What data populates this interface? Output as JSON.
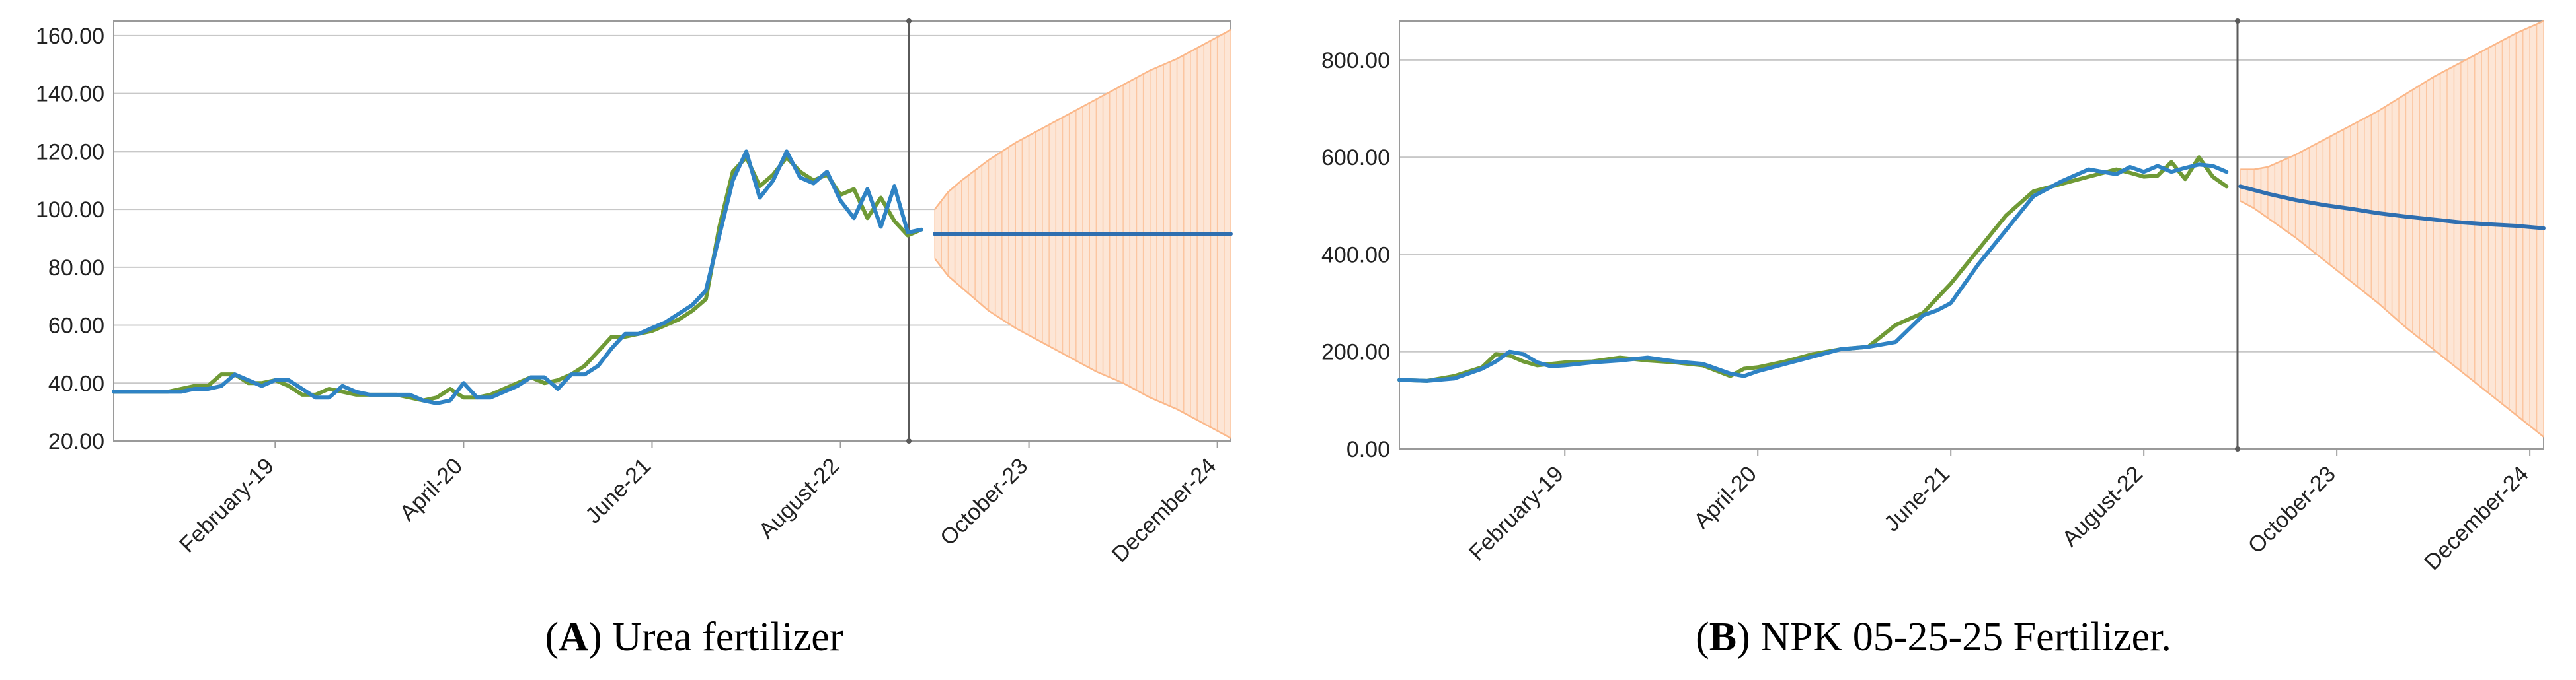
{
  "colors": {
    "actual": "#6f9a36",
    "fitted": "#2f83c4",
    "forecast": "#2f6fb0",
    "band": "#fbb88a",
    "band_fill": "#fde6d6",
    "grid": "#c8c8c8",
    "axis": "#9a9a9a",
    "divider": "#5a5a5a"
  },
  "captions": [
    {
      "letter": "A",
      "text": " Urea fertilizer"
    },
    {
      "letter": "B",
      "text": " NPK 05-25-25 Fertilizer."
    }
  ],
  "chart_data": [
    {
      "type": "line",
      "title": "",
      "ylim": [
        20,
        165
      ],
      "y_ticks": [
        "20.00",
        "40.00",
        "60.00",
        "80.00",
        "100.00",
        "120.00",
        "140.00",
        "160.00"
      ],
      "x_ticks": [
        "February-19",
        "April-20",
        "June-21",
        "August-22",
        "October-23",
        "December-24"
      ],
      "x_tick_months": [
        13,
        27,
        41,
        55,
        69,
        83
      ],
      "x_range_months": [
        1,
        84
      ],
      "forecast_start_month": 62,
      "series": [
        {
          "role": "actual",
          "months": [
            1,
            2,
            3,
            4,
            5,
            6,
            7,
            8,
            9,
            10,
            11,
            12,
            13,
            14,
            15,
            16,
            17,
            18,
            19,
            20,
            21,
            22,
            23,
            24,
            25,
            26,
            27,
            28,
            29,
            30,
            31,
            32,
            33,
            34,
            35,
            36,
            37,
            38,
            39,
            40,
            41,
            42,
            43,
            44,
            45,
            46,
            47,
            48,
            49,
            50,
            51,
            52,
            53,
            54,
            55,
            56,
            57,
            58,
            59,
            60,
            61
          ],
          "values": [
            37,
            37,
            37,
            37,
            37,
            38,
            39,
            39,
            43,
            43,
            40,
            40,
            41,
            39,
            36,
            36,
            38,
            37,
            36,
            36,
            36,
            36,
            35,
            34,
            35,
            38,
            35,
            35,
            36,
            38,
            40,
            42,
            40,
            41,
            43,
            46,
            51,
            56,
            56,
            57,
            58,
            60,
            62,
            65,
            69,
            94,
            113,
            118,
            108,
            112,
            118,
            113,
            110,
            112,
            105,
            107,
            97,
            104,
            96,
            91,
            93
          ]
        },
        {
          "role": "fitted",
          "months": [
            1,
            2,
            3,
            4,
            5,
            6,
            7,
            8,
            9,
            10,
            11,
            12,
            13,
            14,
            15,
            16,
            17,
            18,
            19,
            20,
            21,
            22,
            23,
            24,
            25,
            26,
            27,
            28,
            29,
            30,
            31,
            32,
            33,
            34,
            35,
            36,
            37,
            38,
            39,
            40,
            41,
            42,
            43,
            44,
            45,
            46,
            47,
            48,
            49,
            50,
            51,
            52,
            53,
            54,
            55,
            56,
            57,
            58,
            59,
            60,
            61
          ],
          "values": [
            37,
            37,
            37,
            37,
            37,
            37,
            38,
            38,
            39,
            43,
            41,
            39,
            41,
            41,
            38,
            35,
            35,
            39,
            37,
            36,
            36,
            36,
            36,
            34,
            33,
            34,
            40,
            35,
            35,
            37,
            39,
            42,
            42,
            38,
            43,
            43,
            46,
            52,
            57,
            57,
            59,
            61,
            64,
            67,
            72,
            91,
            110,
            120,
            104,
            110,
            120,
            111,
            109,
            113,
            103,
            97,
            107,
            94,
            108,
            92,
            93
          ]
        },
        {
          "role": "forecast",
          "months": [
            62,
            84
          ],
          "values": [
            91.5,
            91.5
          ]
        },
        {
          "role": "upper",
          "months": [
            62,
            63,
            64,
            66,
            68,
            70,
            72,
            74,
            76,
            78,
            80,
            82,
            84
          ],
          "values": [
            100,
            106,
            110,
            117,
            123,
            128,
            133,
            138,
            143,
            148,
            152,
            157,
            162
          ]
        },
        {
          "role": "lower",
          "months": [
            62,
            63,
            64,
            66,
            68,
            70,
            72,
            74,
            76,
            78,
            80,
            82,
            84
          ],
          "values": [
            83,
            77,
            73,
            65,
            59,
            54,
            49,
            44,
            40,
            35,
            31,
            26,
            21
          ]
        }
      ]
    },
    {
      "type": "line",
      "title": "",
      "ylim": [
        0,
        880
      ],
      "y_ticks": [
        "0.00",
        "200.00",
        "400.00",
        "600.00",
        "800.00"
      ],
      "x_ticks": [
        "February-19",
        "April-20",
        "June-21",
        "August-22",
        "October-23",
        "December-24"
      ],
      "x_tick_months": [
        13,
        27,
        41,
        55,
        69,
        83
      ],
      "x_range_months": [
        1,
        84
      ],
      "forecast_start_month": 62,
      "series": [
        {
          "role": "actual",
          "months": [
            1,
            3,
            5,
            7,
            8,
            9,
            10,
            11,
            12,
            13,
            15,
            17,
            19,
            21,
            23,
            25,
            26,
            27,
            29,
            31,
            33,
            35,
            37,
            39,
            40,
            41,
            43,
            45,
            47,
            49,
            51,
            53,
            54,
            55,
            56,
            57,
            58,
            59,
            60,
            61
          ],
          "values": [
            142,
            140,
            150,
            168,
            195,
            192,
            180,
            172,
            175,
            178,
            180,
            188,
            182,
            178,
            172,
            150,
            165,
            168,
            180,
            195,
            205,
            210,
            255,
            280,
            310,
            340,
            410,
            480,
            530,
            545,
            560,
            575,
            568,
            560,
            562,
            590,
            555,
            600,
            560,
            540
          ]
        },
        {
          "role": "fitted",
          "months": [
            1,
            3,
            5,
            7,
            8,
            9,
            10,
            11,
            12,
            13,
            15,
            17,
            19,
            21,
            23,
            25,
            26,
            27,
            29,
            31,
            33,
            35,
            37,
            39,
            40,
            41,
            43,
            45,
            47,
            49,
            51,
            53,
            54,
            55,
            56,
            57,
            58,
            59,
            60,
            61
          ],
          "values": [
            142,
            140,
            145,
            165,
            180,
            200,
            195,
            178,
            170,
            172,
            178,
            182,
            188,
            180,
            175,
            155,
            150,
            160,
            175,
            190,
            205,
            210,
            220,
            275,
            285,
            300,
            380,
            450,
            520,
            550,
            575,
            565,
            580,
            570,
            582,
            570,
            578,
            585,
            582,
            570
          ]
        },
        {
          "role": "forecast",
          "months": [
            62,
            64,
            66,
            68,
            70,
            72,
            74,
            76,
            78,
            80,
            82,
            84
          ],
          "values": [
            540,
            525,
            512,
            502,
            494,
            485,
            478,
            472,
            466,
            462,
            459,
            454
          ]
        },
        {
          "role": "upper",
          "months": [
            62,
            63,
            64,
            66,
            68,
            70,
            72,
            74,
            76,
            78,
            80,
            82,
            84
          ],
          "values": [
            575,
            575,
            580,
            605,
            635,
            665,
            695,
            730,
            765,
            795,
            825,
            855,
            880
          ]
        },
        {
          "role": "lower",
          "months": [
            62,
            63,
            64,
            66,
            68,
            70,
            72,
            74,
            76,
            78,
            80,
            82,
            84
          ],
          "values": [
            510,
            495,
            475,
            435,
            390,
            345,
            300,
            250,
            205,
            160,
            115,
            70,
            25
          ]
        }
      ]
    }
  ]
}
